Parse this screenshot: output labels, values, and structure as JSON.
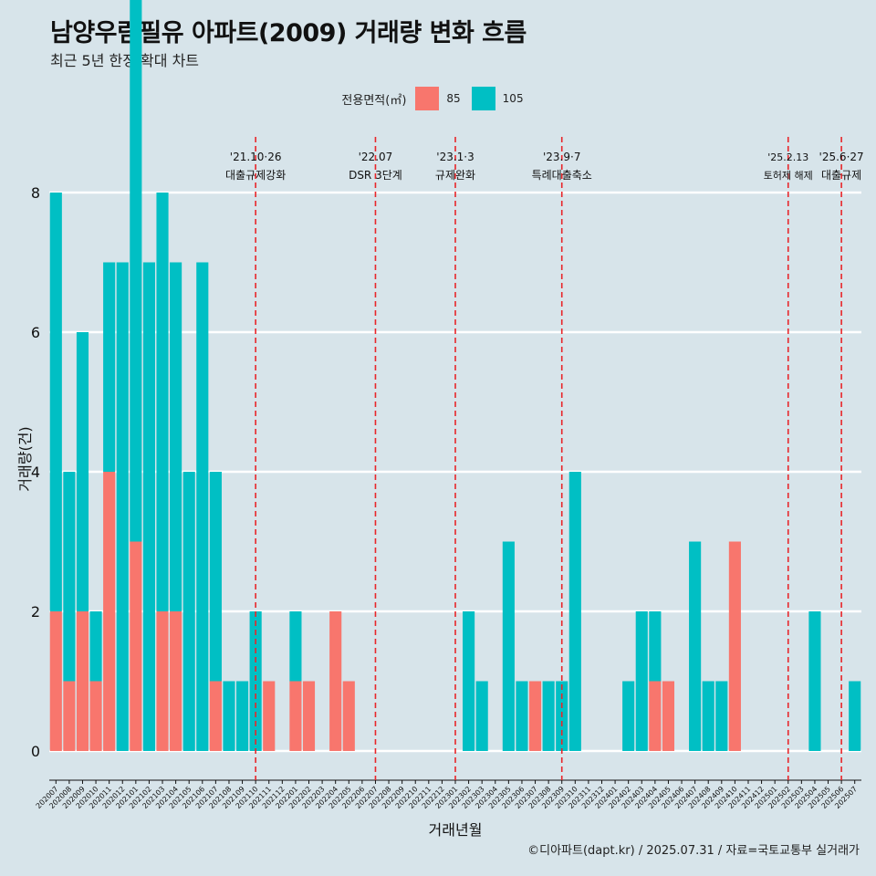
{
  "title": "남양우림필유 아파트(2009) 거래량 변화 흐름",
  "subtitle": "최근 5년 한정 확대 차트",
  "legend": {
    "title": "전용면적(㎡)",
    "items": [
      {
        "label": "85",
        "color": "#F8766D"
      },
      {
        "label": "105",
        "color": "#00BFC4"
      }
    ]
  },
  "caption": "©디아파트(dapt.kr) / 2025.07.31 / 자료=국토교통부 실거래가",
  "chart_data": {
    "type": "bar",
    "xlabel": "거래년월",
    "ylabel": "거래량(건)",
    "ylim": [
      0,
      8
    ],
    "yticks": [
      0,
      2,
      4,
      6,
      8
    ],
    "grid": true,
    "categories": [
      "202007",
      "202008",
      "202009",
      "202010",
      "202011",
      "202012",
      "202101",
      "202102",
      "202103",
      "202104",
      "202105",
      "202106",
      "202107",
      "202108",
      "202109",
      "202110",
      "202111",
      "202112",
      "202201",
      "202202",
      "202203",
      "202204",
      "202205",
      "202206",
      "202207",
      "202208",
      "202209",
      "202210",
      "202211",
      "202212",
      "202301",
      "202302",
      "202303",
      "202304",
      "202305",
      "202306",
      "202307",
      "202308",
      "202309",
      "202310",
      "202311",
      "202312",
      "202401",
      "202402",
      "202403",
      "202404",
      "202405",
      "202406",
      "202407",
      "202408",
      "202409",
      "202410",
      "202411",
      "202412",
      "202501",
      "202502",
      "202503",
      "202504",
      "202505",
      "202506",
      "202507"
    ],
    "series": [
      {
        "name": "85",
        "color": "#F8766D",
        "values": [
          2,
          1,
          2,
          1,
          4,
          0,
          3,
          0,
          2,
          2,
          0,
          0,
          1,
          0,
          0,
          0,
          1,
          0,
          1,
          1,
          0,
          2,
          1,
          0,
          0,
          0,
          0,
          0,
          0,
          0,
          0,
          0,
          0,
          0,
          0,
          0,
          1,
          0,
          0,
          0,
          0,
          0,
          0,
          0,
          0,
          1,
          1,
          0,
          0,
          0,
          0,
          3,
          0,
          0,
          0,
          0,
          0,
          0,
          0,
          0,
          0
        ]
      },
      {
        "name": "105",
        "color": "#00BFC4",
        "values": [
          6,
          3,
          4,
          1,
          3,
          7,
          8,
          7,
          6,
          5,
          4,
          7,
          3,
          1,
          1,
          2,
          0,
          0,
          1,
          0,
          0,
          0,
          0,
          0,
          0,
          0,
          0,
          0,
          0,
          0,
          0,
          2,
          1,
          0,
          3,
          1,
          0,
          1,
          1,
          4,
          0,
          0,
          0,
          1,
          2,
          1,
          0,
          0,
          3,
          1,
          1,
          0,
          0,
          0,
          0,
          0,
          0,
          2,
          0,
          0,
          1
        ]
      }
    ],
    "annotations": [
      {
        "category": "202110",
        "date": "'21.10·26",
        "label": "대출규제강화"
      },
      {
        "category": "202207",
        "date": "'22.07",
        "label": "DSR 3단계"
      },
      {
        "category": "202301",
        "date": "'23.1·3",
        "label": "규제완화"
      },
      {
        "category": "202309",
        "date": "'23.9·7",
        "label": "특례대출축소"
      },
      {
        "category": "202502",
        "date": "'25.2.13",
        "label": "토허제 해제"
      },
      {
        "category": "202506",
        "date": "'25.6·27",
        "label": "대출규제"
      }
    ]
  }
}
